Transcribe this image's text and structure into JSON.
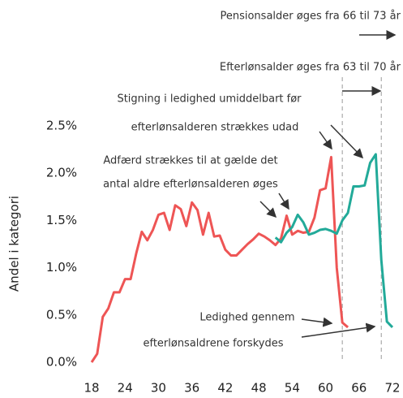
{
  "chart_data": {
    "type": "line",
    "y_label": "Andel i kategori",
    "x": [
      18,
      19,
      20,
      21,
      22,
      23,
      24,
      25,
      26,
      27,
      28,
      29,
      30,
      31,
      32,
      33,
      34,
      35,
      36,
      37,
      38,
      39,
      40,
      41,
      42,
      43,
      44,
      45,
      46,
      47,
      48,
      49,
      50,
      51,
      52,
      53,
      54,
      55,
      56,
      57,
      58,
      59,
      60,
      61,
      62,
      63,
      64,
      65,
      66,
      67,
      68,
      69,
      70,
      71,
      72
    ],
    "series": [
      {
        "color": "#ee5555",
        "values": [
          0,
          0.09,
          0.48,
          0.57,
          0.74,
          0.74,
          0.88,
          0.88,
          1.15,
          1.38,
          1.29,
          1.4,
          1.56,
          1.58,
          1.4,
          1.66,
          1.62,
          1.44,
          1.69,
          1.61,
          1.35,
          1.58,
          1.33,
          1.34,
          1.19,
          1.13,
          1.13,
          1.19,
          1.25,
          1.3,
          1.36,
          1.33,
          1.29,
          1.24,
          1.31,
          1.55,
          1.35,
          1.39,
          1.37,
          1.38,
          1.53,
          1.82,
          1.84,
          2.17,
          1.0,
          0.42,
          0.37,
          null,
          null,
          null,
          null,
          null,
          null,
          null,
          null
        ]
      },
      {
        "color": "#22aa99",
        "values": [
          null,
          null,
          null,
          null,
          null,
          null,
          null,
          null,
          null,
          null,
          null,
          null,
          null,
          null,
          null,
          null,
          null,
          null,
          null,
          null,
          null,
          null,
          null,
          null,
          null,
          null,
          null,
          null,
          null,
          null,
          null,
          null,
          null,
          1.32,
          1.27,
          1.37,
          1.43,
          1.56,
          1.48,
          1.35,
          1.37,
          1.4,
          1.41,
          1.39,
          1.36,
          1.5,
          1.58,
          1.86,
          1.86,
          1.87,
          2.11,
          2.2,
          1.08,
          0.43,
          0.37
        ]
      }
    ],
    "reference_lines": [
      63,
      70
    ],
    "reference_color": "#aaaaaa",
    "xlim": [
      18,
      72
    ],
    "xticks": [
      18,
      24,
      30,
      36,
      42,
      48,
      54,
      60,
      66,
      72
    ],
    "ylim": [
      0,
      2.5
    ],
    "yticks": [
      {
        "value": 0,
        "label": "0.0%"
      },
      {
        "value": 0.5,
        "label": "0.5%"
      },
      {
        "value": 1,
        "label": "1.0%"
      },
      {
        "value": 1.5,
        "label": "1.5%"
      },
      {
        "value": 2,
        "label": "2.0%"
      },
      {
        "value": 2.5,
        "label": "2.5%"
      }
    ],
    "annotations": [
      "Pensionsalder øges fra 66 til 73 år",
      "Efterlønsalder øges fra 63 til 70 år",
      "Stigning i ledighed umiddelbart før",
      "efterlønsalderen strækkes udad",
      "Adfærd strækkes til at gælde det",
      "antal aldre efterlønsalderen øges",
      "Ledighed gennem",
      "efterlønsaldrene forskydes"
    ]
  }
}
